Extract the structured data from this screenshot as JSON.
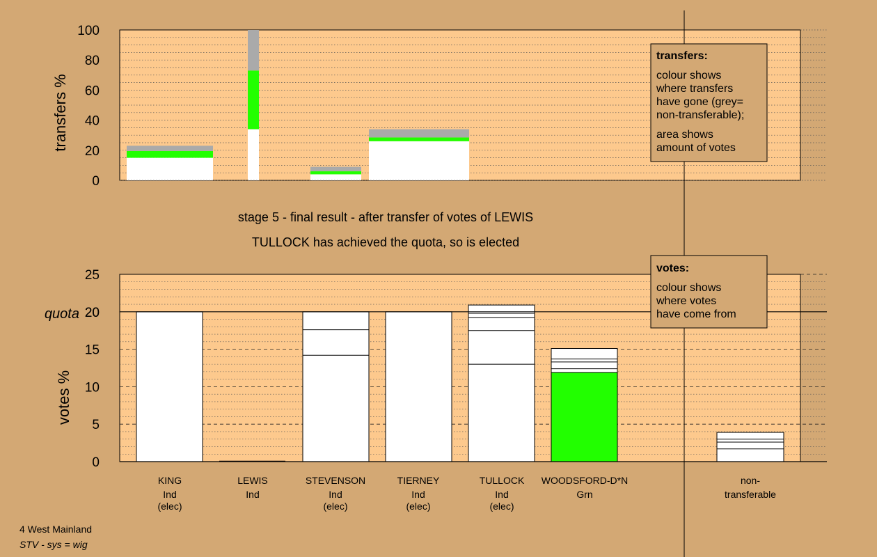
{
  "colors": {
    "page_bg": "#d3a874",
    "plot_bg": "#fdc98d",
    "white": "#ffffff",
    "green": "#22ff00",
    "grey": "#aaaaaa"
  },
  "header": {
    "stage_line": "stage 5 - final result - after transfer of votes of LEWIS",
    "elected_line": "TULLOCK has achieved the quota, so is elected"
  },
  "footer": {
    "line1": "4 West Mainland",
    "line2": "STV - sys = wig"
  },
  "transfers_box": {
    "title": "transfers:",
    "lines": [
      "colour shows",
      "where transfers",
      "have gone (grey=",
      "non-transferable);",
      "area shows",
      "amount of votes"
    ]
  },
  "votes_box": {
    "title": "votes:",
    "lines": [
      "colour shows",
      "where votes",
      "have come from"
    ]
  },
  "candidates": [
    {
      "name": "KING",
      "party": "Ind",
      "status": "(elec)"
    },
    {
      "name": "LEWIS",
      "party": "Ind",
      "status": ""
    },
    {
      "name": "STEVENSON",
      "party": "Ind",
      "status": "(elec)"
    },
    {
      "name": "TIERNEY",
      "party": "Ind",
      "status": "(elec)"
    },
    {
      "name": "TULLOCK",
      "party": "Ind",
      "status": "(elec)"
    },
    {
      "name": "WOODSFORD-D*N",
      "party": "Grn",
      "status": ""
    }
  ],
  "nontransferable_label": [
    "non-",
    "transferable"
  ],
  "chart_data": [
    {
      "type": "bar",
      "ylabel": "transfers %",
      "ylim": [
        0,
        100
      ],
      "yticks": [
        0,
        20,
        40,
        60,
        80,
        100
      ],
      "bars": [
        {
          "candidate": "KING",
          "segments": [
            {
              "color": "white",
              "value": 15
            },
            {
              "color": "green",
              "value": 4.5
            },
            {
              "color": "grey",
              "value": 3.5
            }
          ]
        },
        {
          "candidate": "LEWIS",
          "segments": [
            {
              "color": "white",
              "value": 34
            },
            {
              "color": "green",
              "value": 39
            },
            {
              "color": "grey",
              "value": 27
            }
          ]
        },
        {
          "candidate": "STEVENSON",
          "segments": [
            {
              "color": "white",
              "value": 4
            },
            {
              "color": "green",
              "value": 2
            },
            {
              "color": "grey",
              "value": 3
            }
          ]
        },
        {
          "candidate": "TIERNEY + TULLOCK",
          "segments": [
            {
              "color": "white",
              "value": 26
            },
            {
              "color": "green",
              "value": 2.5
            },
            {
              "color": "grey",
              "value": 5.5
            }
          ]
        }
      ]
    },
    {
      "type": "bar",
      "ylabel": "votes %",
      "ylim": [
        0,
        25
      ],
      "yticks": [
        0,
        5,
        10,
        15,
        20,
        25
      ],
      "quota": {
        "label": "quota",
        "value": 20
      },
      "bars": [
        {
          "candidate": "KING",
          "total": 20,
          "color": "white",
          "dividers": []
        },
        {
          "candidate": "LEWIS",
          "total": 0,
          "color": "white",
          "dividers": []
        },
        {
          "candidate": "STEVENSON",
          "total": 20,
          "color": "white",
          "dividers": [
            14.2,
            17.6
          ]
        },
        {
          "candidate": "TIERNEY",
          "total": 20,
          "color": "white",
          "dividers": []
        },
        {
          "candidate": "TULLOCK",
          "total": 20.9,
          "color": "white",
          "dividers": [
            13.0,
            17.5,
            19.2,
            19.8
          ]
        },
        {
          "candidate": "WOODSFORD-D*N",
          "total": 15.1,
          "color": "green",
          "green_value": 11.9,
          "dividers": [
            12.4,
            13.3,
            13.7
          ]
        },
        {
          "candidate": "non-transferable",
          "total": 3.9,
          "color": "white",
          "dividers": [
            1.7,
            2.6,
            3.0
          ]
        }
      ]
    }
  ]
}
